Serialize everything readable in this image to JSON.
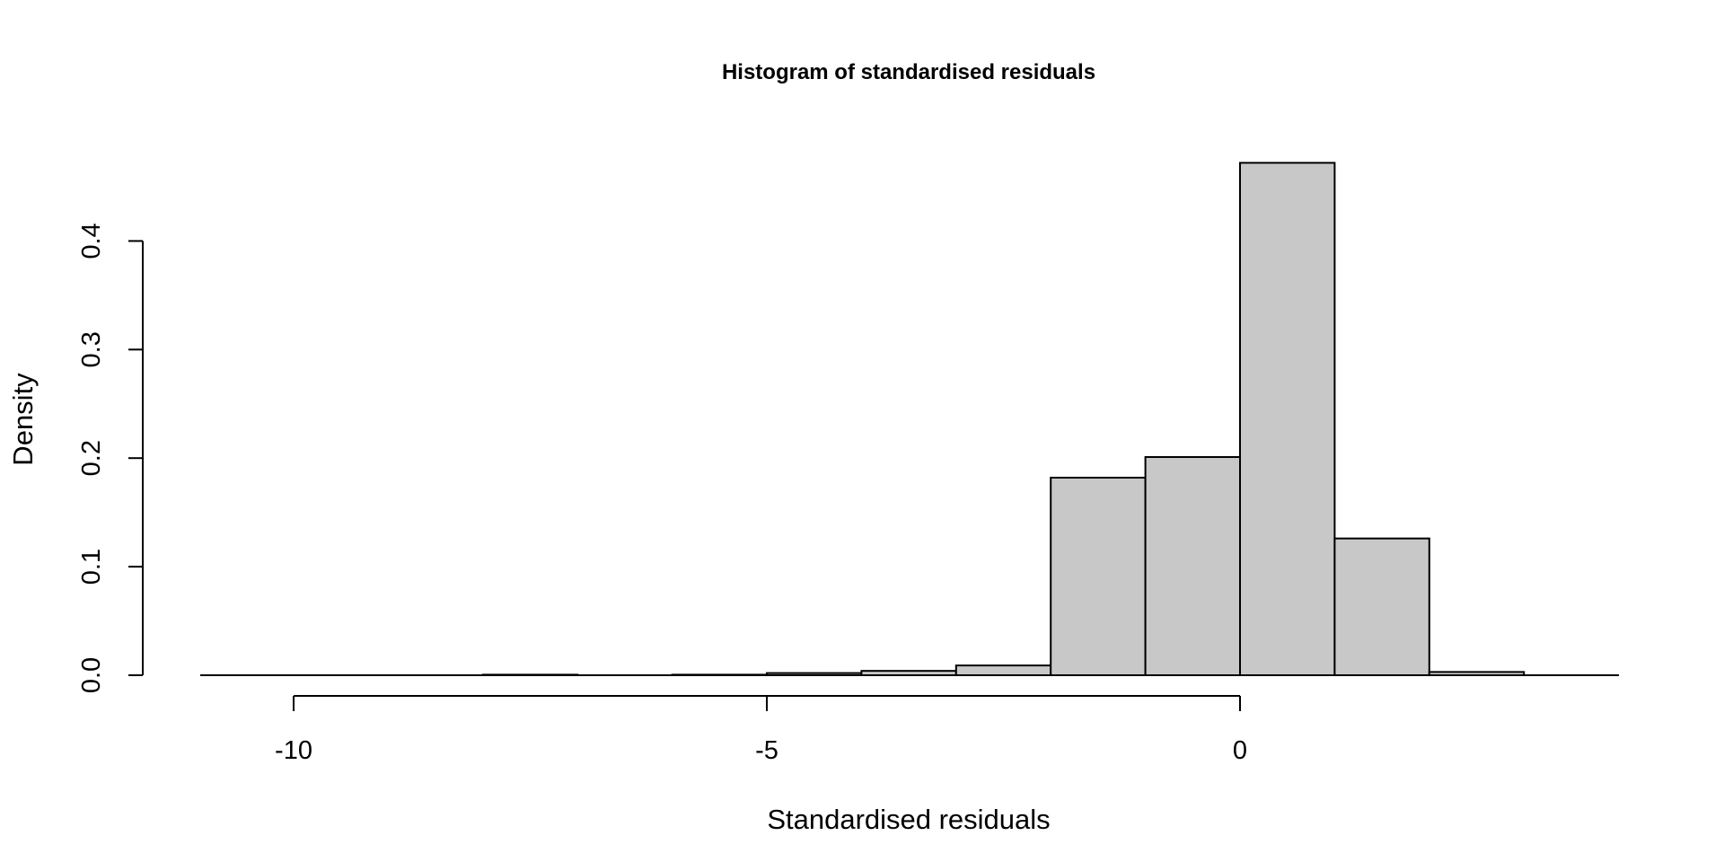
{
  "chart_data": {
    "type": "bar",
    "title": "Histogram of standardised residuals",
    "xlabel": "Standardised residuals",
    "ylabel": "Density",
    "bin_edges": [
      -11,
      -10,
      -9,
      -8,
      -7,
      -6,
      -5,
      -4,
      -3,
      -2,
      -1,
      0,
      1,
      2,
      3,
      4
    ],
    "values": [
      0,
      0,
      0,
      0.0005,
      0,
      0.0005,
      0.002,
      0.004,
      0.009,
      0.182,
      0.201,
      0.472,
      0.126,
      0.003,
      0
    ],
    "xlim": [
      -12,
      4
    ],
    "ylim": [
      0,
      0.472
    ],
    "xticks": [
      -10,
      -5,
      0
    ],
    "xtick_labels": [
      "-10",
      "-5",
      "0"
    ],
    "yticks": [
      0,
      0.1,
      0.2,
      0.3,
      0.4
    ],
    "ytick_labels": [
      "0.0",
      "0.1",
      "0.2",
      "0.3",
      "0.4"
    ],
    "bar_color": "#c8c8c8",
    "edge_color": "#000000",
    "grid": false,
    "legend": "none"
  }
}
